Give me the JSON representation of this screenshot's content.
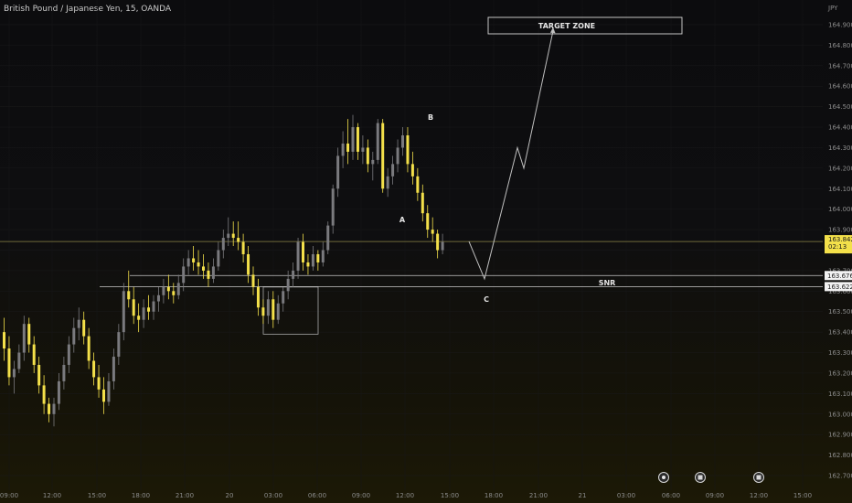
{
  "header": {
    "symbol_title": "British Pound / Japanese Yen, 15, OANDA",
    "currency_label": "JPY"
  },
  "colors": {
    "bull_candle": "#7a7a7e",
    "bear_candle": "#f3e04a",
    "annotation_line": "#b8b8b8",
    "price_label_bg": "#f3e04a",
    "level_label_bg": "#f2f2f2"
  },
  "labels": {
    "point_a": "A",
    "point_b": "B",
    "point_c": "C",
    "target_zone": "TARGET ZONE",
    "snr": "SNR"
  },
  "price_labels": {
    "last_price": "163.842",
    "countdown": "02:13",
    "level_upper": "163.676",
    "level_lower": "163.622"
  },
  "bottom_icons": [
    "clock-icon",
    "flag-icon",
    "flag-icon"
  ],
  "chart_data": {
    "type": "candlestick",
    "y_axis_ticks": [
      "164.900",
      "164.800",
      "164.700",
      "164.600",
      "164.500",
      "164.400",
      "164.300",
      "164.200",
      "164.100",
      "164.000",
      "163.900",
      "163.800",
      "163.700",
      "163.600",
      "163.500",
      "163.400",
      "163.300",
      "163.200",
      "163.100",
      "163.000",
      "162.900",
      "162.800",
      "162.700"
    ],
    "x_axis_ticks": [
      "09:00",
      "12:00",
      "15:00",
      "18:00",
      "21:00",
      "20",
      "03:00",
      "06:00",
      "09:00",
      "12:00",
      "15:00",
      "18:00",
      "21:00",
      "21",
      "03:00",
      "06:00",
      "09:00",
      "12:00",
      "15:00"
    ],
    "ylim": [
      162.68,
      164.98
    ],
    "levels": {
      "last_price": 163.842,
      "snr_upper": 163.676,
      "snr_lower": 163.622
    },
    "candles": [
      [
        163.4,
        163.47,
        163.26,
        163.32
      ],
      [
        163.32,
        163.38,
        163.14,
        163.18
      ],
      [
        163.18,
        163.26,
        163.1,
        163.22
      ],
      [
        163.22,
        163.34,
        163.2,
        163.3
      ],
      [
        163.3,
        163.48,
        163.26,
        163.44
      ],
      [
        163.44,
        163.47,
        163.3,
        163.34
      ],
      [
        163.34,
        163.38,
        163.2,
        163.24
      ],
      [
        163.24,
        163.28,
        163.1,
        163.14
      ],
      [
        163.14,
        163.19,
        163.0,
        163.05
      ],
      [
        163.05,
        163.08,
        162.96,
        163.0
      ],
      [
        163.0,
        163.08,
        162.94,
        163.05
      ],
      [
        163.05,
        163.2,
        163.02,
        163.16
      ],
      [
        163.16,
        163.28,
        163.12,
        163.24
      ],
      [
        163.24,
        163.38,
        163.2,
        163.34
      ],
      [
        163.34,
        163.47,
        163.3,
        163.42
      ],
      [
        163.42,
        163.52,
        163.36,
        163.46
      ],
      [
        163.46,
        163.5,
        163.34,
        163.38
      ],
      [
        163.38,
        163.42,
        163.22,
        163.26
      ],
      [
        163.26,
        163.3,
        163.14,
        163.18
      ],
      [
        163.18,
        163.24,
        163.08,
        163.12
      ],
      [
        163.12,
        163.18,
        163.0,
        163.06
      ],
      [
        163.06,
        163.2,
        163.04,
        163.16
      ],
      [
        163.16,
        163.32,
        163.12,
        163.28
      ],
      [
        163.28,
        163.44,
        163.24,
        163.4
      ],
      [
        163.4,
        163.64,
        163.36,
        163.6
      ],
      [
        163.6,
        163.7,
        163.52,
        163.56
      ],
      [
        163.56,
        163.62,
        163.44,
        163.48
      ],
      [
        163.48,
        163.54,
        163.4,
        163.46
      ],
      [
        163.46,
        163.56,
        163.42,
        163.52
      ],
      [
        163.52,
        163.58,
        163.46,
        163.5
      ],
      [
        163.5,
        163.58,
        163.46,
        163.55
      ],
      [
        163.55,
        163.62,
        163.5,
        163.58
      ],
      [
        163.58,
        163.66,
        163.54,
        163.62
      ],
      [
        163.62,
        163.68,
        163.56,
        163.6
      ],
      [
        163.6,
        163.64,
        163.54,
        163.58
      ],
      [
        163.58,
        163.68,
        163.56,
        163.64
      ],
      [
        163.64,
        163.76,
        163.6,
        163.72
      ],
      [
        163.72,
        163.8,
        163.68,
        163.76
      ],
      [
        163.76,
        163.82,
        163.7,
        163.74
      ],
      [
        163.74,
        163.8,
        163.68,
        163.72
      ],
      [
        163.72,
        163.78,
        163.66,
        163.7
      ],
      [
        163.7,
        163.74,
        163.62,
        163.66
      ],
      [
        163.66,
        163.76,
        163.64,
        163.72
      ],
      [
        163.72,
        163.84,
        163.7,
        163.8
      ],
      [
        163.8,
        163.9,
        163.76,
        163.86
      ],
      [
        163.86,
        163.96,
        163.82,
        163.88
      ],
      [
        163.88,
        163.94,
        163.82,
        163.86
      ],
      [
        163.86,
        163.94,
        163.8,
        163.84
      ],
      [
        163.84,
        163.88,
        163.74,
        163.78
      ],
      [
        163.78,
        163.82,
        163.64,
        163.68
      ],
      [
        163.68,
        163.72,
        163.58,
        163.62
      ],
      [
        163.62,
        163.66,
        163.48,
        163.52
      ],
      [
        163.52,
        163.56,
        163.44,
        163.48
      ],
      [
        163.48,
        163.6,
        163.44,
        163.56
      ],
      [
        163.56,
        163.6,
        163.42,
        163.46
      ],
      [
        163.46,
        163.58,
        163.44,
        163.54
      ],
      [
        163.54,
        163.62,
        163.5,
        163.6
      ],
      [
        163.6,
        163.7,
        163.56,
        163.66
      ],
      [
        163.66,
        163.74,
        163.62,
        163.7
      ],
      [
        163.7,
        163.86,
        163.66,
        163.84
      ],
      [
        163.84,
        163.88,
        163.7,
        163.74
      ],
      [
        163.74,
        163.78,
        163.68,
        163.72
      ],
      [
        163.72,
        163.82,
        163.7,
        163.78
      ],
      [
        163.78,
        163.8,
        163.7,
        163.74
      ],
      [
        163.74,
        163.84,
        163.72,
        163.8
      ],
      [
        163.8,
        163.94,
        163.78,
        163.92
      ],
      [
        163.92,
        164.12,
        163.88,
        164.1
      ],
      [
        164.1,
        164.3,
        164.06,
        164.26
      ],
      [
        164.26,
        164.38,
        164.2,
        164.32
      ],
      [
        164.32,
        164.44,
        164.22,
        164.28
      ],
      [
        164.28,
        164.46,
        164.24,
        164.4
      ],
      [
        164.4,
        164.42,
        164.24,
        164.28
      ],
      [
        164.28,
        164.36,
        164.22,
        164.3
      ],
      [
        164.3,
        164.34,
        164.18,
        164.22
      ],
      [
        164.22,
        164.28,
        164.14,
        164.24
      ],
      [
        164.24,
        164.44,
        164.22,
        164.42
      ],
      [
        164.42,
        164.44,
        164.08,
        164.1
      ],
      [
        164.1,
        164.2,
        164.06,
        164.16
      ],
      [
        164.16,
        164.26,
        164.12,
        164.22
      ],
      [
        164.22,
        164.34,
        164.18,
        164.3
      ],
      [
        164.3,
        164.4,
        164.26,
        164.36
      ],
      [
        164.36,
        164.4,
        164.18,
        164.22
      ],
      [
        164.22,
        164.28,
        164.12,
        164.16
      ],
      [
        164.16,
        164.2,
        164.04,
        164.08
      ],
      [
        164.08,
        164.12,
        163.94,
        163.98
      ],
      [
        163.98,
        164.02,
        163.86,
        163.9
      ],
      [
        163.9,
        163.96,
        163.84,
        163.88
      ],
      [
        163.88,
        163.9,
        163.76,
        163.8
      ],
      [
        163.8,
        163.88,
        163.78,
        163.84
      ]
    ],
    "annotations": {
      "projection_path_prices": [
        163.842,
        163.66,
        164.3,
        164.2,
        164.87
      ],
      "range_box_price_top": 163.62,
      "range_box_price_bottom": 163.39
    }
  }
}
